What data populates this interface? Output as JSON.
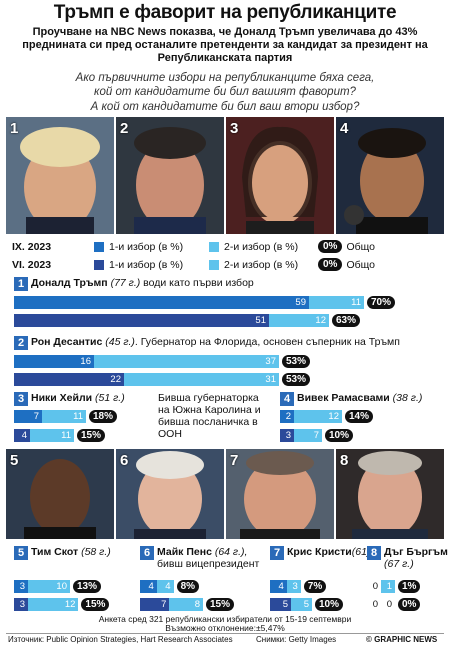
{
  "title": "Тръмп е фаворит на републиканците",
  "subtitle": "Проучване на NBC News показва, че Доналд Тръмп увеличава до 43% преднината си пред останалите претенденти за кандидат за президент на Републиканската партия",
  "questions": [
    "Ако първичните избори на републиканците бяха сега,",
    "кой от кандидатите би бил вашият фаворит?",
    "А кой от кандидатите би бил ваш втори избор?"
  ],
  "legend": {
    "rows": [
      {
        "period": "IX. 2023",
        "first": "1-и избор (в %)",
        "second": "2-и избор (в %)",
        "zero": "0%",
        "total": "Общо"
      },
      {
        "period": "VI. 2023",
        "first": "1-и избор (в %)",
        "second": "2-и избор (в %)",
        "zero": "0%",
        "total": "Общо"
      }
    ]
  },
  "colors": {
    "sep_first": "#1e6fc2",
    "jun_first": "#2b4a9a",
    "second": "#5ec3ec"
  },
  "chart_data": {
    "type": "bar",
    "series": [
      {
        "name": "IX. 2023 – 1-и избор",
        "period": "IX. 2023"
      },
      {
        "name": "IX. 2023 – 2-и избор",
        "period": "IX. 2023"
      },
      {
        "name": "VI. 2023 – 1-и избор",
        "period": "VI. 2023"
      },
      {
        "name": "VI. 2023 – 2-и избор",
        "period": "VI. 2023"
      }
    ],
    "candidates": [
      {
        "num": "1",
        "name": "Доналд Тръмп",
        "age": " (77 г.)",
        "desc": " води като първи избор",
        "sep": [
          59,
          11
        ],
        "jun": [
          51,
          12
        ],
        "sep_total": "70%",
        "jun_total": "63%"
      },
      {
        "num": "2",
        "name": "Рон Десантис",
        "age": " (45 г.)",
        "desc": ". Губернатор на Флорида, основен съперник на Тръмп",
        "sep": [
          16,
          37
        ],
        "jun": [
          22,
          31
        ],
        "sep_total": "53%",
        "jun_total": "53%"
      },
      {
        "num": "3",
        "name": "Ники Хейли",
        "age": " (51 г.)",
        "desc": "",
        "sep": [
          7,
          11
        ],
        "jun": [
          4,
          11
        ],
        "sep_total": "18%",
        "jun_total": "15%"
      },
      {
        "num": "4",
        "name": "Вивек Рамасвами",
        "age": " (38 г.)",
        "desc": "",
        "sep": [
          2,
          12
        ],
        "jun": [
          3,
          7
        ],
        "sep_total": "14%",
        "jun_total": "10%"
      },
      {
        "num": "5",
        "name": "Тим Скот",
        "age": " (58 г.)",
        "desc": "",
        "sep": [
          3,
          10
        ],
        "jun": [
          3,
          12
        ],
        "sep_total": "13%",
        "jun_total": "15%"
      },
      {
        "num": "6",
        "name": "Майк Пенс",
        "age": " (64 г.),",
        "desc": "бивш вицепрезидент",
        "sep": [
          4,
          4
        ],
        "jun": [
          7,
          8
        ],
        "sep_total": "8%",
        "jun_total": "15%"
      },
      {
        "num": "7",
        "name": "Крис Кристи",
        "age": "(61)",
        "desc": "",
        "sep": [
          4,
          3
        ],
        "jun": [
          5,
          5
        ],
        "sep_total": "7%",
        "jun_total": "10%"
      },
      {
        "num": "8",
        "name": "Дъг Бъргъм",
        "age": " (67 г.)",
        "desc": "",
        "sep": [
          0,
          1
        ],
        "jun": [
          0,
          0
        ],
        "sep_total": "1%",
        "jun_total": "0%"
      }
    ]
  },
  "haley_note": [
    "Бивша губернаторка",
    "на Южна Каролина и",
    "бивша посланичка в",
    "ООН"
  ],
  "survey_note": "Анкета сред 321 републикански избиратели от 15-19 септември",
  "margin_note": "Възможно отклонение:±5,47%",
  "footer": {
    "source": "Източник: Public Opinion Strategies, Hart Research Associates",
    "photos": "Снимки: Getty Images",
    "brand": "© GRAPHIC NEWS"
  }
}
